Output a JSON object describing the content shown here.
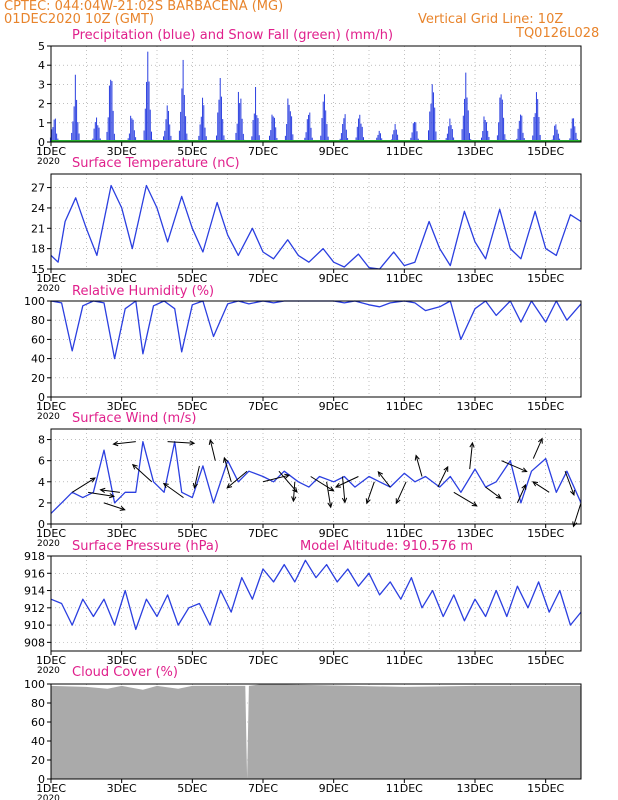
{
  "header": {
    "line1_left": "CPTEC:  044:04W-21:02S  BARBACENA (MG)",
    "line2_left": "01DEC2020 10Z (GMT)",
    "line2_right": "Vertical Grid Line: 10Z",
    "line3_right": "TQ0126L028"
  },
  "x_axis": {
    "ticks": [
      1,
      3,
      5,
      7,
      9,
      11,
      13,
      15
    ],
    "tick_labels": [
      "1DEC",
      "3DEC",
      "5DEC",
      "7DEC",
      "9DEC",
      "11DEC",
      "13DEC",
      "15DEC"
    ],
    "year_label": "2020",
    "range_days": [
      1,
      16
    ]
  },
  "colors": {
    "series": "#2b3fe0",
    "snow": "#27b12b",
    "cloud": "#aaaaaa",
    "title": "#e0208c",
    "header": "#e8842c"
  },
  "chart_data": [
    {
      "type": "bar",
      "title": "Precipitation (blue) and Snow Fall (green) (mm/h)",
      "ylim": [
        0,
        5
      ],
      "yticks": [
        0,
        1,
        2,
        3,
        4,
        5
      ],
      "bursts": [
        {
          "day": 1.1,
          "peak": 1.3
        },
        {
          "day": 1.7,
          "peak": 3.0
        },
        {
          "day": 2.3,
          "peak": 1.5
        },
        {
          "day": 2.7,
          "peak": 3.7
        },
        {
          "day": 3.3,
          "peak": 1.4
        },
        {
          "day": 3.75,
          "peak": 4.3
        },
        {
          "day": 4.3,
          "peak": 1.8
        },
        {
          "day": 4.75,
          "peak": 3.6
        },
        {
          "day": 5.3,
          "peak": 2.0
        },
        {
          "day": 5.8,
          "peak": 3.0
        },
        {
          "day": 6.35,
          "peak": 2.7
        },
        {
          "day": 6.8,
          "peak": 2.4
        },
        {
          "day": 7.3,
          "peak": 1.9
        },
        {
          "day": 7.75,
          "peak": 2.6
        },
        {
          "day": 8.3,
          "peak": 1.6
        },
        {
          "day": 8.75,
          "peak": 2.5
        },
        {
          "day": 9.3,
          "peak": 1.5
        },
        {
          "day": 9.75,
          "peak": 1.6
        },
        {
          "day": 10.3,
          "peak": 0.5
        },
        {
          "day": 10.75,
          "peak": 0.8
        },
        {
          "day": 11.3,
          "peak": 1.2
        },
        {
          "day": 11.8,
          "peak": 3.5
        },
        {
          "day": 12.3,
          "peak": 1.3
        },
        {
          "day": 12.75,
          "peak": 3.6
        },
        {
          "day": 13.3,
          "peak": 1.5
        },
        {
          "day": 13.75,
          "peak": 3.1
        },
        {
          "day": 14.3,
          "peak": 1.5
        },
        {
          "day": 14.75,
          "peak": 2.5
        },
        {
          "day": 15.3,
          "peak": 1.0
        },
        {
          "day": 15.8,
          "peak": 1.4
        }
      ],
      "snow_values": 0
    },
    {
      "type": "line",
      "title": "Surface Temperature (nC)",
      "ylim": [
        15,
        29
      ],
      "yticks": [
        15,
        18,
        21,
        24,
        27
      ],
      "x": [
        1.0,
        1.2,
        1.4,
        1.7,
        2.0,
        2.3,
        2.7,
        3.0,
        3.3,
        3.7,
        4.0,
        4.3,
        4.7,
        5.0,
        5.3,
        5.7,
        6.0,
        6.3,
        6.7,
        7.0,
        7.3,
        7.7,
        8.0,
        8.3,
        8.7,
        9.0,
        9.3,
        9.7,
        10.0,
        10.3,
        10.7,
        11.0,
        11.3,
        11.7,
        12.0,
        12.3,
        12.7,
        13.0,
        13.3,
        13.7,
        14.0,
        14.3,
        14.7,
        15.0,
        15.3,
        15.7,
        16.0
      ],
      "y": [
        17.0,
        16.0,
        22.0,
        25.5,
        21.0,
        17.0,
        27.3,
        24.0,
        18.0,
        27.3,
        24.0,
        19.0,
        25.7,
        21.0,
        17.5,
        24.8,
        20.0,
        17.0,
        21.0,
        17.5,
        16.5,
        19.3,
        17.0,
        16.0,
        18.0,
        16.0,
        15.3,
        17.2,
        15.2,
        15.0,
        17.5,
        15.5,
        16.0,
        22.0,
        18.0,
        15.5,
        23.5,
        19.0,
        16.5,
        23.8,
        18.0,
        16.5,
        23.5,
        18.0,
        17.0,
        23.0,
        22.0
      ]
    },
    {
      "type": "line",
      "title": "Relative Humidity (%)",
      "ylim": [
        0,
        100
      ],
      "yticks": [
        0,
        20,
        40,
        60,
        80,
        100
      ],
      "x": [
        1.0,
        1.3,
        1.6,
        1.9,
        2.2,
        2.5,
        2.8,
        3.1,
        3.4,
        3.6,
        3.9,
        4.2,
        4.5,
        4.7,
        5.0,
        5.3,
        5.6,
        6.0,
        6.3,
        6.6,
        7.0,
        7.3,
        7.6,
        8.0,
        8.3,
        8.6,
        9.0,
        9.3,
        9.6,
        10.0,
        10.3,
        10.6,
        11.0,
        11.3,
        11.6,
        12.0,
        12.3,
        12.6,
        13.0,
        13.3,
        13.6,
        14.0,
        14.3,
        14.6,
        15.0,
        15.3,
        15.6,
        16.0
      ],
      "y": [
        100,
        98,
        48,
        95,
        100,
        98,
        40,
        92,
        100,
        45,
        95,
        100,
        92,
        47,
        96,
        100,
        63,
        97,
        100,
        97,
        100,
        98,
        100,
        100,
        100,
        100,
        100,
        98,
        100,
        96,
        94,
        98,
        100,
        98,
        90,
        94,
        100,
        60,
        92,
        100,
        85,
        100,
        78,
        100,
        78,
        100,
        80,
        97
      ]
    },
    {
      "type": "line",
      "title": "Surface Wind (m/s)",
      "ylim": [
        0,
        9
      ],
      "yticks": [
        0,
        2,
        4,
        6,
        8
      ],
      "x": [
        1.0,
        1.3,
        1.6,
        1.9,
        2.2,
        2.5,
        2.8,
        3.1,
        3.4,
        3.6,
        3.9,
        4.2,
        4.5,
        4.7,
        5.0,
        5.3,
        5.6,
        6.0,
        6.3,
        6.6,
        7.0,
        7.3,
        7.6,
        8.0,
        8.3,
        8.6,
        9.0,
        9.3,
        9.6,
        10.0,
        10.3,
        10.6,
        11.0,
        11.3,
        11.6,
        12.0,
        12.3,
        12.6,
        13.0,
        13.3,
        13.6,
        14.0,
        14.3,
        14.6,
        15.0,
        15.3,
        15.6,
        16.0
      ],
      "y": [
        1.0,
        2.0,
        3.0,
        2.5,
        3.0,
        7.0,
        2.0,
        3.0,
        3.0,
        7.8,
        4.0,
        3.0,
        7.8,
        3.0,
        2.5,
        5.5,
        2.0,
        6.0,
        4.0,
        5.0,
        4.5,
        4.0,
        5.0,
        4.0,
        3.5,
        4.5,
        4.0,
        4.5,
        3.5,
        4.5,
        4.0,
        3.5,
        4.8,
        4.0,
        4.5,
        3.5,
        4.5,
        3.0,
        5.2,
        3.5,
        4.0,
        6.0,
        2.0,
        5.0,
        6.2,
        3.0,
        5.0,
        2.0
      ]
    },
    {
      "type": "line",
      "title": "Surface Pressure (hPa)",
      "annotation": "Model Altitude: 910.576 m",
      "ylim": [
        907,
        918
      ],
      "yticks": [
        908,
        910,
        912,
        914,
        916,
        918
      ],
      "x": [
        1.0,
        1.3,
        1.6,
        1.9,
        2.2,
        2.5,
        2.8,
        3.1,
        3.4,
        3.7,
        4.0,
        4.3,
        4.6,
        4.9,
        5.2,
        5.5,
        5.8,
        6.1,
        6.4,
        6.7,
        7.0,
        7.3,
        7.6,
        7.9,
        8.2,
        8.5,
        8.8,
        9.1,
        9.4,
        9.7,
        10.0,
        10.3,
        10.6,
        10.9,
        11.2,
        11.5,
        11.8,
        12.1,
        12.4,
        12.7,
        13.0,
        13.3,
        13.6,
        13.9,
        14.2,
        14.5,
        14.8,
        15.1,
        15.4,
        15.7,
        16.0
      ],
      "y": [
        913,
        912.5,
        910,
        913,
        911,
        913,
        910,
        914,
        909.5,
        913,
        911,
        913.5,
        910,
        912,
        912.5,
        910,
        914,
        911.5,
        915.5,
        913,
        916.5,
        915,
        917,
        915,
        917.5,
        915.5,
        917,
        915,
        916.5,
        914.5,
        916,
        913.5,
        915,
        913,
        915.5,
        912,
        914,
        911,
        913.5,
        910.5,
        913,
        911,
        914,
        911,
        914.5,
        912,
        915,
        911.5,
        914,
        910,
        911.5
      ]
    },
    {
      "type": "area",
      "title": "Cloud Cover (%)",
      "ylim": [
        0,
        100
      ],
      "yticks": [
        0,
        20,
        40,
        60,
        80,
        100
      ],
      "x": [
        1.0,
        2.0,
        2.6,
        3.0,
        3.6,
        4.0,
        4.6,
        5.0,
        6.5,
        6.55,
        6.6,
        7.0,
        11.0,
        13.0,
        16.0
      ],
      "y": [
        98,
        97,
        95,
        98,
        94,
        98,
        95,
        98,
        98,
        0,
        98,
        100,
        97,
        98,
        98
      ]
    }
  ]
}
